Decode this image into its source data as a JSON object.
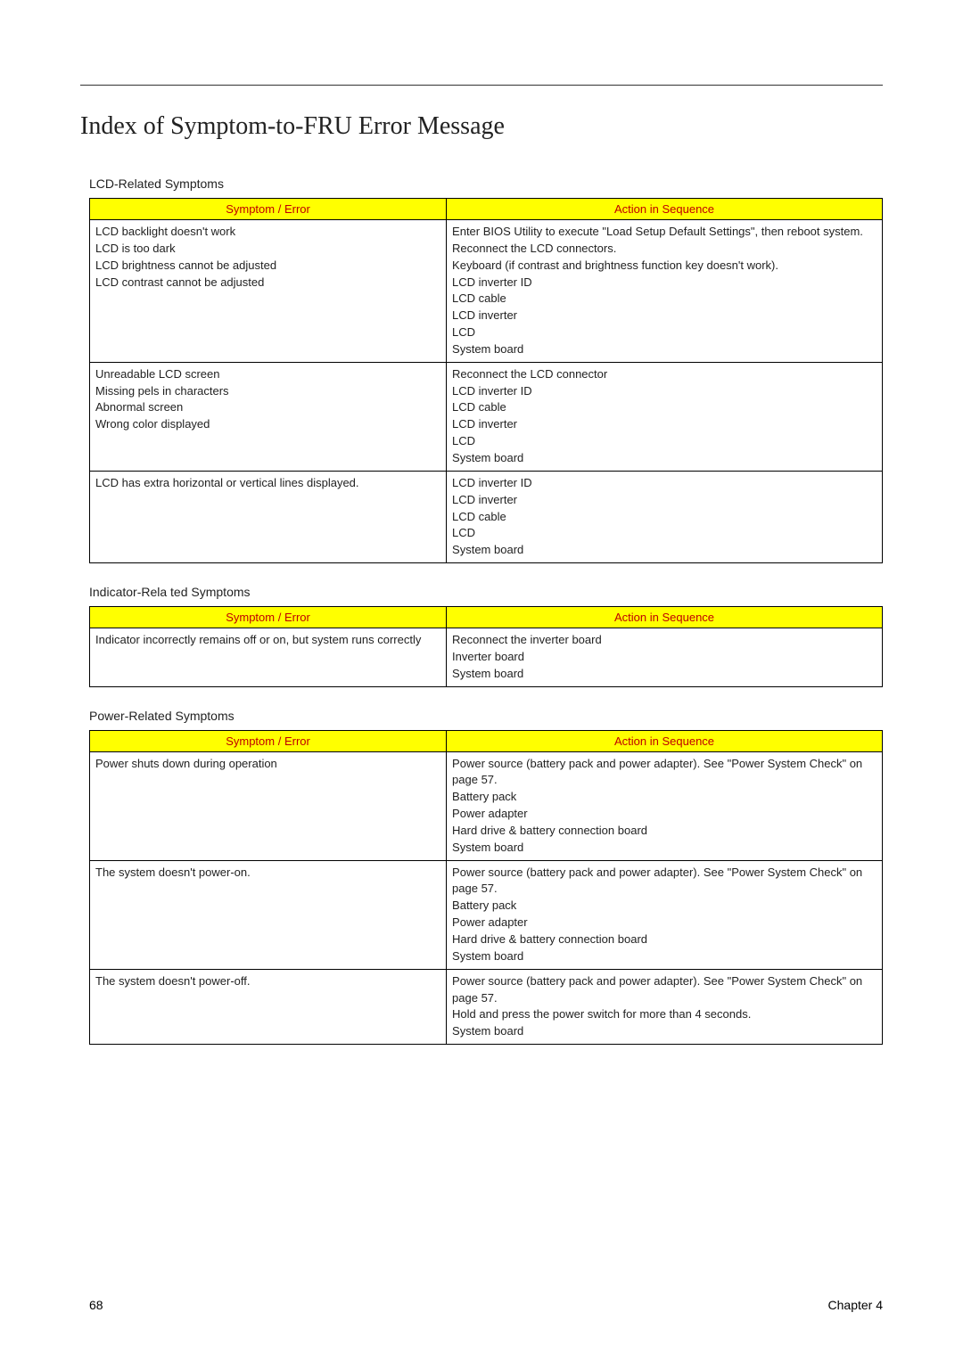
{
  "page_heading": "Index of Symptom-to-FRU Error Message",
  "header_symptom": "Symptom / Error",
  "header_action": "Action in Sequence",
  "header_bg": "#ffff00",
  "header_text_color": "#c00000",
  "table_border_color": "#000000",
  "sections": {
    "lcd": {
      "title": "LCD-Related Symptoms",
      "rows": [
        {
          "symptom": [
            "LCD backlight doesn't work",
            "LCD is too dark",
            "LCD brightness cannot be adjusted",
            "LCD contrast cannot be adjusted"
          ],
          "action": [
            "Enter BIOS Utility to execute \"Load Setup Default Settings\", then reboot system.",
            "Reconnect the LCD connectors.",
            "Keyboard (if contrast and brightness function key doesn't work).",
            "LCD inverter ID",
            "LCD cable",
            "LCD inverter",
            "LCD",
            "System board"
          ]
        },
        {
          "symptom": [
            "Unreadable LCD screen",
            "Missing pels in characters",
            "Abnormal screen",
            "Wrong color displayed"
          ],
          "action": [
            "Reconnect the LCD connector",
            "LCD inverter ID",
            "LCD cable",
            "LCD inverter",
            "LCD",
            "System board"
          ]
        },
        {
          "symptom": [
            "LCD has extra horizontal or vertical lines displayed."
          ],
          "action": [
            "LCD inverter ID",
            "LCD inverter",
            "LCD cable",
            "LCD",
            "System board"
          ]
        }
      ]
    },
    "indicator": {
      "title": "Indicator-Rela ted Symptoms",
      "rows": [
        {
          "symptom": [
            "Indicator incorrectly remains off or on, but system runs correctly"
          ],
          "action": [
            "Reconnect the inverter board",
            "Inverter board",
            "System board"
          ]
        }
      ]
    },
    "power": {
      "title": "Power-Related Symptoms",
      "rows": [
        {
          "symptom": [
            "Power shuts down during operation"
          ],
          "action": [
            "Power source (battery pack and power adapter). See \"Power System Check\" on page 57.",
            "Battery pack",
            "Power adapter",
            "Hard drive & battery connection board",
            "System board"
          ]
        },
        {
          "symptom": [
            "The system doesn't power-on."
          ],
          "action": [
            "Power source (battery pack and power adapter). See \"Power System Check\" on page 57.",
            "Battery pack",
            "Power adapter",
            "Hard drive & battery connection board",
            "System board"
          ]
        },
        {
          "symptom": [
            "The system doesn't power-off."
          ],
          "action": [
            "Power source (battery pack and power adapter). See \"Power System Check\" on page 57.",
            "Hold and press the power switch for more than 4 seconds.",
            "System board"
          ]
        }
      ]
    }
  },
  "footer": {
    "page_number": "68",
    "chapter": "Chapter 4"
  }
}
